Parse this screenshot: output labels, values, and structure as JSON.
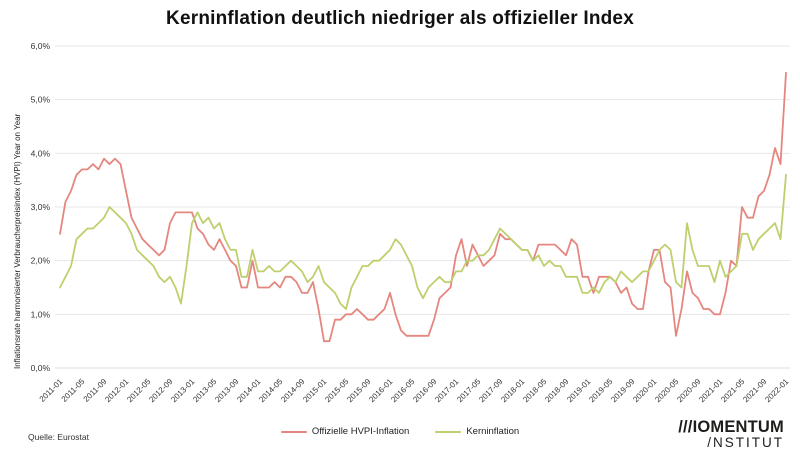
{
  "title": "Kerninflation deutlich niedriger als offizieller Index",
  "source": "Quelle: Eurostat",
  "logo": {
    "line1": "///IOMENTUM",
    "line2": "/NSTITUT"
  },
  "legend": [
    {
      "label": "Offizielle HVPI-Inflation",
      "color": "#e5867f"
    },
    {
      "label": "Kerninflation",
      "color": "#bdd06d"
    }
  ],
  "chart_data": {
    "type": "line",
    "title": "Kerninflation deutlich niedriger als offizieller Index",
    "xlabel": "",
    "ylabel": "Inflationsrate harmonisierter Verbraucherpreisindex (HVPI) Year on Year",
    "ylim": [
      0,
      6
    ],
    "grid": "horizontal",
    "legend_position": "bottom",
    "x_interval": "monthly",
    "x_start": "2011-01",
    "x_end": "2022-01",
    "y_ticks": [
      "6,0%",
      "5,0%",
      "4,0%",
      "3,0%",
      "2,0%",
      "1,0%",
      "0,0%"
    ],
    "x_ticks": [
      "2011-01",
      "2011-05",
      "2011-09",
      "2012-01",
      "2012-05",
      "2012-09",
      "2013-01",
      "2013-05",
      "2013-09",
      "2014-01",
      "2014-05",
      "2014-09",
      "2015-01",
      "2015-05",
      "2015-09",
      "2016-01",
      "2016-05",
      "2016-09",
      "2017-01",
      "2017-05",
      "2017-09",
      "2018-01",
      "2018-05",
      "2018-09",
      "2019-01",
      "2019-05",
      "2019-09",
      "2020-01",
      "2020-05",
      "2020-09",
      "2021-01",
      "2021-05",
      "2021-09",
      "2022-01"
    ],
    "x_tick_every": 4,
    "series": [
      {
        "name": "Offizielle HVPI-Inflation",
        "color": "#e5867f",
        "values": [
          2.5,
          3.1,
          3.3,
          3.6,
          3.7,
          3.7,
          3.8,
          3.7,
          3.9,
          3.8,
          3.9,
          3.8,
          3.3,
          2.8,
          2.6,
          2.4,
          2.3,
          2.2,
          2.1,
          2.2,
          2.7,
          2.9,
          2.9,
          2.9,
          2.9,
          2.6,
          2.5,
          2.3,
          2.2,
          2.4,
          2.2,
          2.0,
          1.9,
          1.5,
          1.5,
          2.0,
          1.5,
          1.5,
          1.5,
          1.6,
          1.5,
          1.7,
          1.7,
          1.6,
          1.4,
          1.4,
          1.6,
          1.1,
          0.5,
          0.5,
          0.9,
          0.9,
          1.0,
          1.0,
          1.1,
          1.0,
          0.9,
          0.9,
          1.0,
          1.1,
          1.4,
          1.0,
          0.7,
          0.6,
          0.6,
          0.6,
          0.6,
          0.6,
          0.9,
          1.3,
          1.4,
          1.5,
          2.1,
          2.4,
          1.9,
          2.3,
          2.1,
          1.9,
          2.0,
          2.1,
          2.5,
          2.4,
          2.4,
          2.3,
          2.2,
          2.2,
          2.0,
          2.3,
          2.3,
          2.3,
          2.3,
          2.2,
          2.1,
          2.4,
          2.3,
          1.7,
          1.7,
          1.4,
          1.7,
          1.7,
          1.7,
          1.6,
          1.4,
          1.5,
          1.2,
          1.1,
          1.1,
          1.8,
          2.2,
          2.2,
          1.6,
          1.5,
          0.6,
          1.1,
          1.8,
          1.4,
          1.3,
          1.1,
          1.1,
          1.0,
          1.0,
          1.4,
          2.0,
          1.9,
          3.0,
          2.8,
          2.8,
          3.2,
          3.3,
          3.6,
          4.1,
          3.8,
          5.5
        ]
      },
      {
        "name": "Kerninflation",
        "color": "#bdd06d",
        "values": [
          1.5,
          1.7,
          1.9,
          2.4,
          2.5,
          2.6,
          2.6,
          2.7,
          2.8,
          3.0,
          2.9,
          2.8,
          2.7,
          2.5,
          2.2,
          2.1,
          2.0,
          1.9,
          1.7,
          1.6,
          1.7,
          1.5,
          1.2,
          1.9,
          2.7,
          2.9,
          2.7,
          2.8,
          2.6,
          2.7,
          2.4,
          2.2,
          2.2,
          1.7,
          1.7,
          2.2,
          1.8,
          1.8,
          1.9,
          1.8,
          1.8,
          1.9,
          2.0,
          1.9,
          1.8,
          1.6,
          1.7,
          1.9,
          1.6,
          1.5,
          1.4,
          1.2,
          1.1,
          1.5,
          1.7,
          1.9,
          1.9,
          2.0,
          2.0,
          2.1,
          2.2,
          2.4,
          2.3,
          2.1,
          1.9,
          1.5,
          1.3,
          1.5,
          1.6,
          1.7,
          1.6,
          1.6,
          1.8,
          1.8,
          2.0,
          2.0,
          2.1,
          2.1,
          2.2,
          2.4,
          2.6,
          2.5,
          2.4,
          2.3,
          2.2,
          2.2,
          2.0,
          2.1,
          1.9,
          2.0,
          1.9,
          1.9,
          1.7,
          1.7,
          1.7,
          1.4,
          1.4,
          1.5,
          1.4,
          1.6,
          1.7,
          1.6,
          1.8,
          1.7,
          1.6,
          1.7,
          1.8,
          1.8,
          2.0,
          2.2,
          2.3,
          2.2,
          1.6,
          1.5,
          2.7,
          2.2,
          1.9,
          1.9,
          1.9,
          1.6,
          2.0,
          1.7,
          1.8,
          1.9,
          2.5,
          2.5,
          2.2,
          2.4,
          2.5,
          2.6,
          2.7,
          2.4,
          3.6
        ]
      }
    ]
  }
}
